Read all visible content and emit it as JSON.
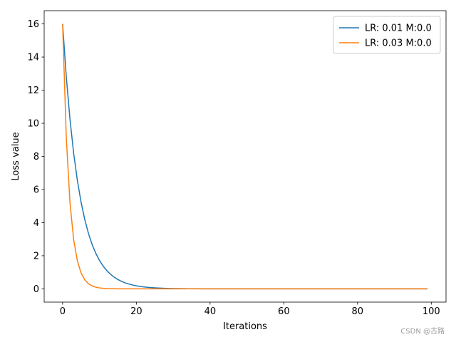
{
  "chart_data": {
    "type": "line",
    "title": "",
    "xlabel": "Iterations",
    "ylabel": "Loss value",
    "xlim": [
      -5,
      104
    ],
    "ylim": [
      -0.8,
      16.8
    ],
    "xticks": [
      0,
      20,
      40,
      60,
      80,
      100
    ],
    "yticks": [
      0,
      2,
      4,
      6,
      8,
      10,
      12,
      14,
      16
    ],
    "grid": false,
    "legend": "top-right",
    "series": [
      {
        "name": "LR: 0.01 M:0.0",
        "color": "#1f77b4",
        "initial": 16,
        "decay_per_iteration": 0.8,
        "x_range": [
          0,
          99
        ]
      },
      {
        "name": "LR: 0.03 M:0.0",
        "color": "#ff7f0e",
        "initial": 16,
        "decay_per_iteration": 0.57,
        "x_range": [
          0,
          99
        ]
      }
    ]
  },
  "watermark": "CSDN @古路"
}
